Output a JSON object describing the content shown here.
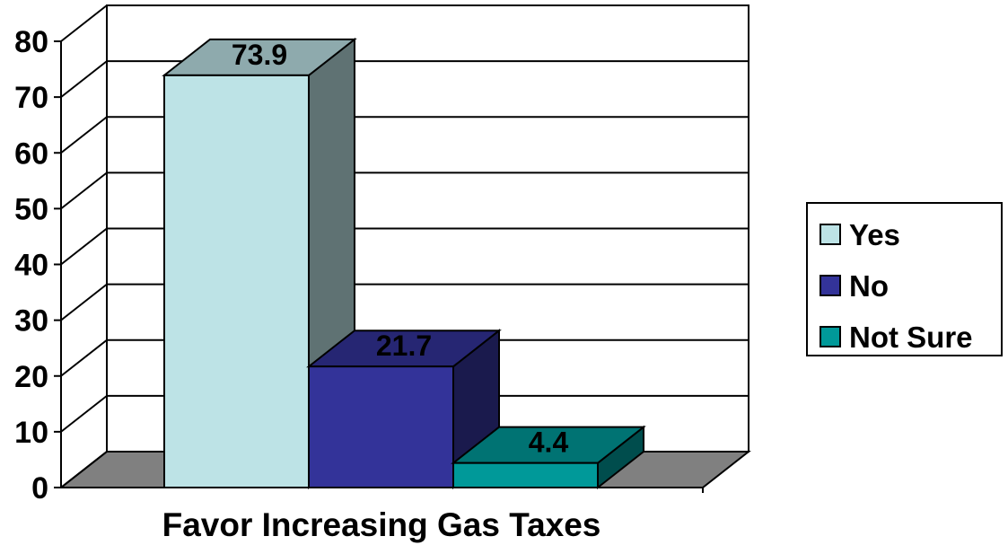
{
  "chart_data": {
    "type": "bar",
    "title": "",
    "xlabel": "Favor Increasing Gas Taxes",
    "ylabel": "",
    "ylim": [
      0,
      80
    ],
    "yticks": [
      0,
      10,
      20,
      30,
      40,
      50,
      60,
      70,
      80
    ],
    "grid": true,
    "legend_position": "right",
    "three_d": true,
    "series": [
      {
        "name": "Yes",
        "value": 73.9,
        "label": "73.9",
        "color": "#BDE3E6"
      },
      {
        "name": "No",
        "value": 21.7,
        "label": "21.7",
        "color": "#333399"
      },
      {
        "name": "Not Sure",
        "value": 4.4,
        "label": "4.4",
        "color": "#009999"
      }
    ]
  }
}
